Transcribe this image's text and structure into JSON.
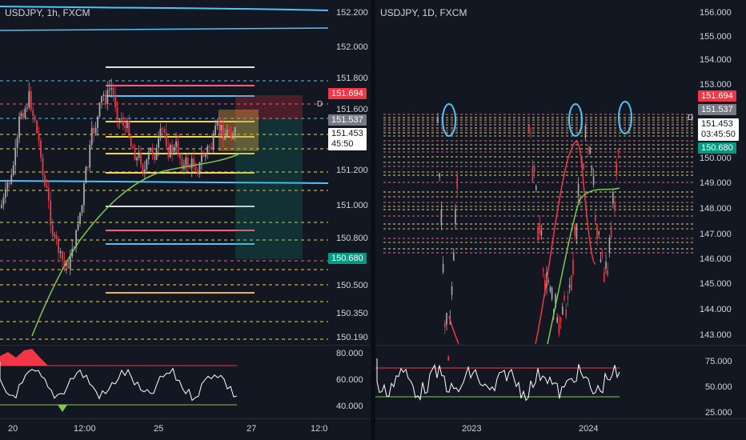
{
  "left_chart": {
    "title": "USDJPY, 1h, FXCM",
    "price_ticks": [
      "152.200",
      "152.000",
      "151.800",
      "151.600",
      "151.200",
      "151.000",
      "150.800",
      "150.500",
      "150.350",
      "150.190"
    ],
    "osc_ticks": [
      "80.000",
      "60.000",
      "40.000"
    ],
    "time_ticks": [
      "20",
      "12:00",
      "25",
      "27",
      "12:0"
    ],
    "tag_red": "151.694",
    "tag_gray": "151.537",
    "tag_price": "151.453",
    "tag_countdown": "45:50",
    "tag_green": "150.680",
    "line_marker": "D"
  },
  "right_chart": {
    "title": "USDJPY, 1D, FXCM",
    "price_ticks": [
      "156.000",
      "155.000",
      "154.000",
      "153.000",
      "150.000",
      "149.000",
      "148.000",
      "147.000",
      "146.000",
      "145.000",
      "144.000",
      "143.000"
    ],
    "osc_ticks": [
      "75.000",
      "50.000",
      "25.000"
    ],
    "time_ticks": [
      "2023",
      "2024"
    ],
    "tag_red": "151.694",
    "tag_gray": "151.537",
    "tag_price": "151.453",
    "tag_countdown": "03:45:50",
    "tag_green": "150.680",
    "line_marker": "D"
  },
  "colors": {
    "background": "#131722",
    "bull": "#a9a9a9",
    "bear": "#f23645",
    "cyan": "#4fc3f7",
    "yellow": "#f5d742",
    "orange": "#f5b342",
    "pink": "#ff5b7a",
    "green_ma": "#7ec850",
    "tag_red": "#f23645",
    "tag_gray": "#787b86",
    "tag_green": "#089981"
  }
}
